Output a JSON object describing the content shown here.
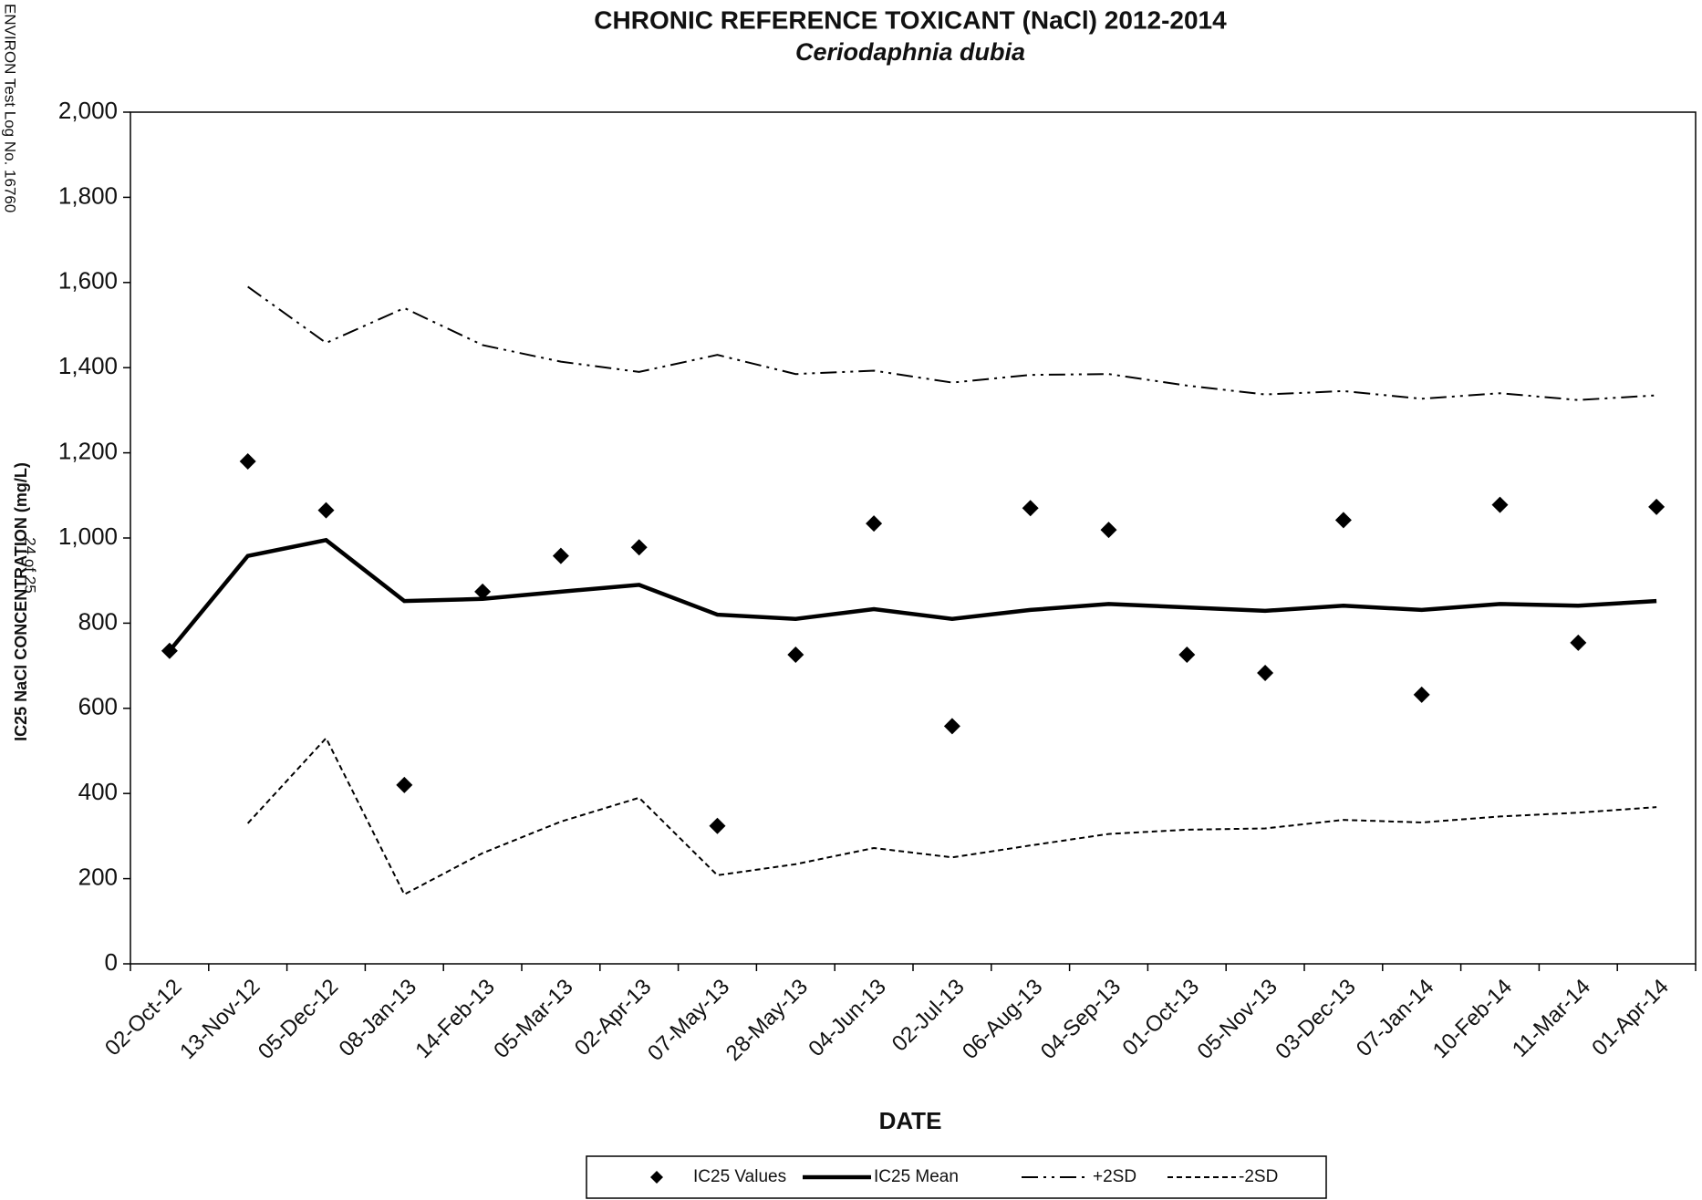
{
  "chart_data": {
    "type": "line",
    "title": "CHRONIC REFERENCE TOXICANT (NaCl) 2012-2014",
    "subtitle": "Ceriodaphnia dubia",
    "x_label": "DATE",
    "y_label": "IC25 NaCl CONCENTRATION (mg/L)",
    "annotations": [
      "ENVIRON Test Log No. 16760",
      "24 of 25"
    ],
    "categories": [
      "02-Oct-12",
      "13-Nov-12",
      "05-Dec-12",
      "08-Jan-13",
      "14-Feb-13",
      "05-Mar-13",
      "02-Apr-13",
      "07-May-13",
      "28-May-13",
      "04-Jun-13",
      "02-Jul-13",
      "06-Aug-13",
      "04-Sep-13",
      "01-Oct-13",
      "05-Nov-13",
      "03-Dec-13",
      "07-Jan-14",
      "10-Feb-14",
      "11-Mar-14",
      "01-Apr-14"
    ],
    "series": [
      {
        "name": "IC25 Values",
        "color": "#000000",
        "style": "diamond",
        "values": [
          735,
          1180,
          1065,
          420,
          874,
          958,
          978,
          324,
          726,
          1034,
          558,
          1070,
          1019,
          726,
          683,
          1042,
          632,
          1078,
          754,
          1073
        ]
      },
      {
        "name": "IC25 Mean",
        "color": "#000000",
        "style": "solid",
        "values": [
          735,
          958,
          995,
          852,
          857,
          874,
          890,
          820,
          810,
          833,
          810,
          831,
          845,
          837,
          829,
          841,
          831,
          845,
          841,
          852
        ]
      },
      {
        "name": "+2SD",
        "color": "#000000",
        "style": "dash-dot",
        "values": [
          null,
          1590,
          1458,
          1540,
          1453,
          1414,
          1390,
          1430,
          1385,
          1393,
          1365,
          1383,
          1385,
          1358,
          1337,
          1345,
          1327,
          1340,
          1324,
          1335
        ]
      },
      {
        "name": "-2SD",
        "color": "#000000",
        "style": "dashed",
        "values": [
          null,
          330,
          530,
          163,
          260,
          334,
          390,
          208,
          234,
          272,
          250,
          278,
          305,
          315,
          318,
          338,
          332,
          346,
          355,
          368
        ]
      }
    ],
    "ylim": [
      0,
      2000
    ],
    "yticks": [
      0,
      200,
      400,
      600,
      800,
      {
        "value": 1000,
        "label": "1,000"
      },
      {
        "value": 1200,
        "label": "1,200"
      },
      {
        "value": 1400,
        "label": "1,400"
      },
      {
        "value": 1600,
        "label": "1,600"
      },
      {
        "value": 1800,
        "label": "1,800"
      },
      {
        "value": 2000,
        "label": "2,000"
      }
    ],
    "grid": false,
    "legend_position": "bottom"
  }
}
